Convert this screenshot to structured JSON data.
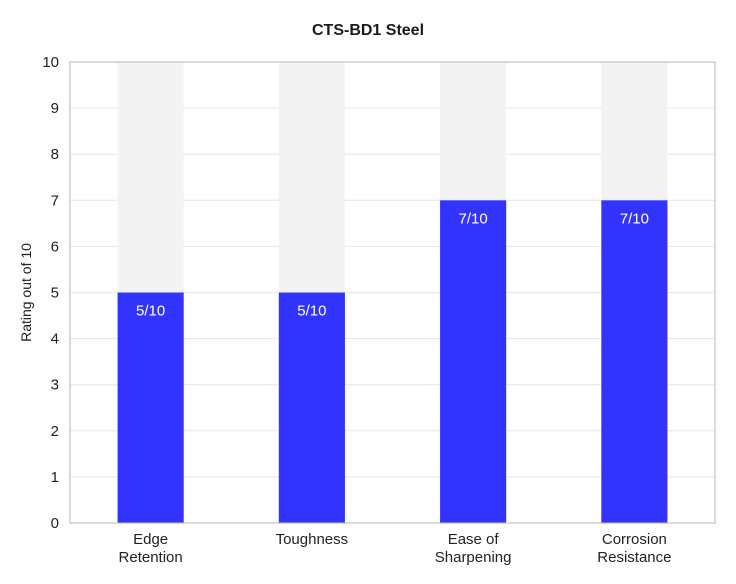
{
  "chart_data": {
    "type": "bar",
    "title": "CTS-BD1 Steel",
    "xlabel": "",
    "ylabel": "Rating out of 10",
    "ylim": [
      0,
      10
    ],
    "yticks": [
      0,
      1,
      2,
      3,
      4,
      5,
      6,
      7,
      8,
      9,
      10
    ],
    "grid": true,
    "legend": "none",
    "categories": [
      [
        "Edge",
        "Retention"
      ],
      [
        "Toughness"
      ],
      [
        "Ease of",
        "Sharpening"
      ],
      [
        "Corrosion",
        "Resistance"
      ]
    ],
    "values": [
      5,
      5,
      7,
      7
    ],
    "max": 10,
    "data_labels": [
      "5/10",
      "5/10",
      "7/10",
      "7/10"
    ]
  },
  "colors": {
    "bar": "#3333ff",
    "track": "#f3f3f3",
    "grid": "#e6e6e6",
    "frame": "#b5b5b5"
  }
}
